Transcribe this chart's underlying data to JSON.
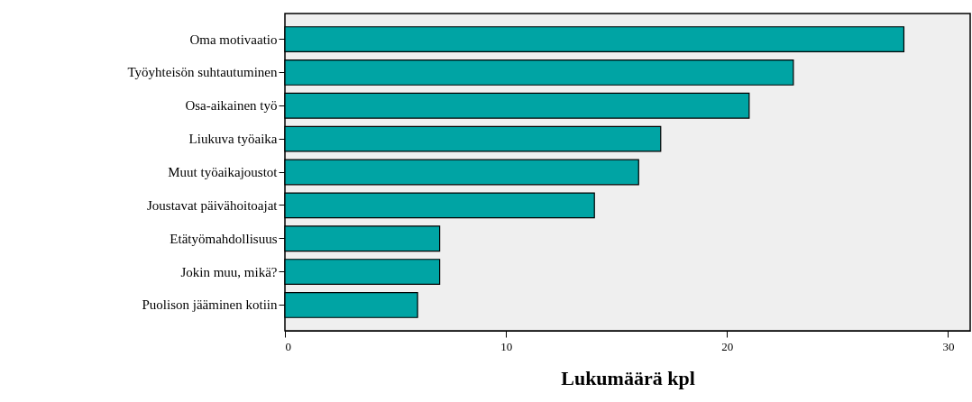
{
  "chart_data": {
    "type": "bar",
    "orientation": "horizontal",
    "xlabel": "Lukumäärä kpl",
    "categories": [
      "Oma motivaatio",
      "Työyhteisön suhtautuminen",
      "Osa-aikainen työ",
      "Liukuva työaika",
      "Muut työaikajoustot",
      "Joustavat päivähoitoajat",
      "Etätyömahdollisuus",
      "Jokin muu, mikä?",
      "Puolison jääminen kotiin"
    ],
    "values": [
      28,
      23,
      21,
      17,
      16,
      14,
      7,
      7,
      6
    ],
    "color": "#00a4a4",
    "xlim": [
      0,
      31
    ],
    "xticks": [
      0,
      10,
      20,
      30
    ],
    "grid": false
  }
}
